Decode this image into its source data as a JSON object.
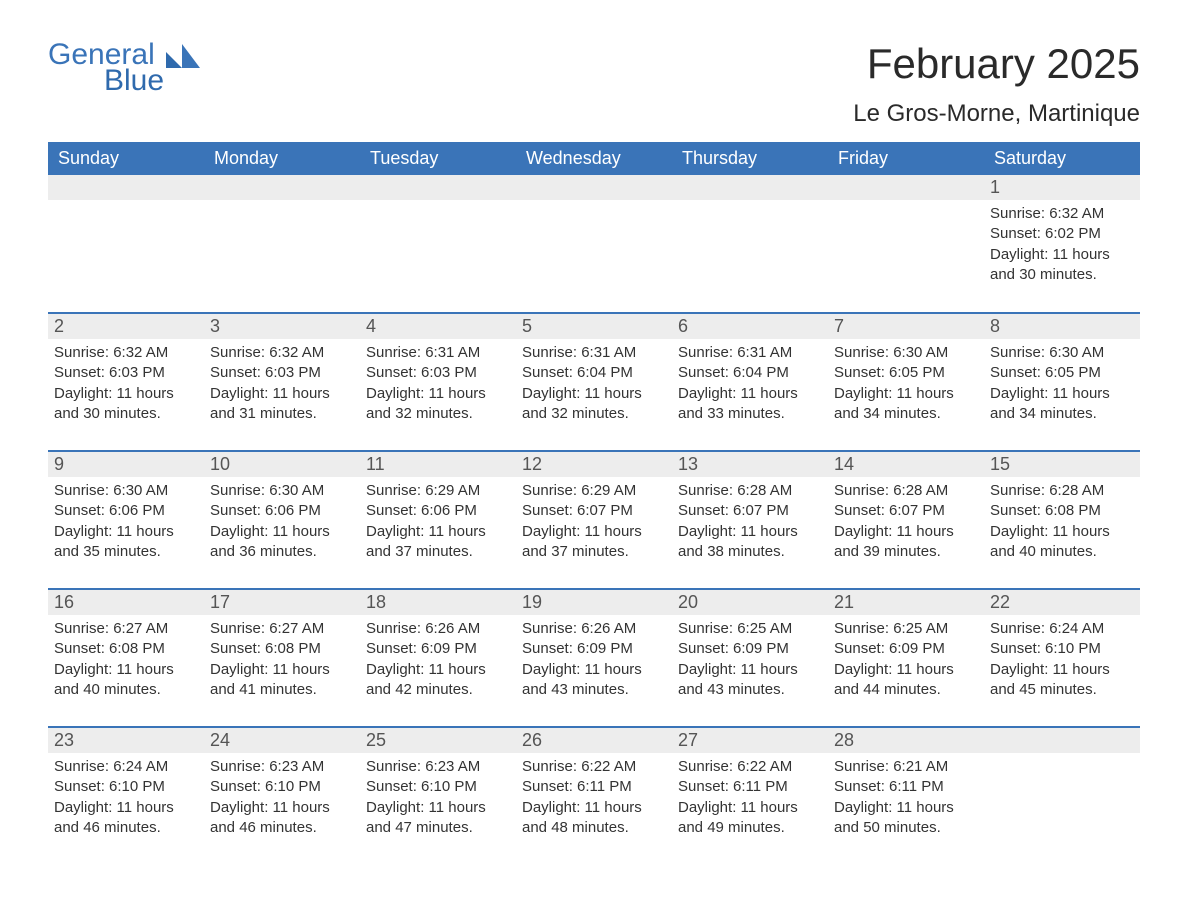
{
  "brand": {
    "general": "General",
    "blue": "Blue"
  },
  "title": "February 2025",
  "location": "Le Gros-Morne, Martinique",
  "calendar": {
    "type": "table",
    "header_bg": "#3a74b8",
    "header_fg": "#ffffff",
    "row_divider_color": "#3a74b8",
    "daynum_bg": "#ededed",
    "text_color": "#333333",
    "background_color": "#ffffff",
    "title_fontsize": 42,
    "location_fontsize": 24,
    "header_fontsize": 18,
    "body_fontsize": 15,
    "columns": [
      "Sunday",
      "Monday",
      "Tuesday",
      "Wednesday",
      "Thursday",
      "Friday",
      "Saturday"
    ],
    "weeks": [
      [
        null,
        null,
        null,
        null,
        null,
        null,
        {
          "n": "1",
          "sunrise": "Sunrise: 6:32 AM",
          "sunset": "Sunset: 6:02 PM",
          "daylight": "Daylight: 11 hours and 30 minutes."
        }
      ],
      [
        {
          "n": "2",
          "sunrise": "Sunrise: 6:32 AM",
          "sunset": "Sunset: 6:03 PM",
          "daylight": "Daylight: 11 hours and 30 minutes."
        },
        {
          "n": "3",
          "sunrise": "Sunrise: 6:32 AM",
          "sunset": "Sunset: 6:03 PM",
          "daylight": "Daylight: 11 hours and 31 minutes."
        },
        {
          "n": "4",
          "sunrise": "Sunrise: 6:31 AM",
          "sunset": "Sunset: 6:03 PM",
          "daylight": "Daylight: 11 hours and 32 minutes."
        },
        {
          "n": "5",
          "sunrise": "Sunrise: 6:31 AM",
          "sunset": "Sunset: 6:04 PM",
          "daylight": "Daylight: 11 hours and 32 minutes."
        },
        {
          "n": "6",
          "sunrise": "Sunrise: 6:31 AM",
          "sunset": "Sunset: 6:04 PM",
          "daylight": "Daylight: 11 hours and 33 minutes."
        },
        {
          "n": "7",
          "sunrise": "Sunrise: 6:30 AM",
          "sunset": "Sunset: 6:05 PM",
          "daylight": "Daylight: 11 hours and 34 minutes."
        },
        {
          "n": "8",
          "sunrise": "Sunrise: 6:30 AM",
          "sunset": "Sunset: 6:05 PM",
          "daylight": "Daylight: 11 hours and 34 minutes."
        }
      ],
      [
        {
          "n": "9",
          "sunrise": "Sunrise: 6:30 AM",
          "sunset": "Sunset: 6:06 PM",
          "daylight": "Daylight: 11 hours and 35 minutes."
        },
        {
          "n": "10",
          "sunrise": "Sunrise: 6:30 AM",
          "sunset": "Sunset: 6:06 PM",
          "daylight": "Daylight: 11 hours and 36 minutes."
        },
        {
          "n": "11",
          "sunrise": "Sunrise: 6:29 AM",
          "sunset": "Sunset: 6:06 PM",
          "daylight": "Daylight: 11 hours and 37 minutes."
        },
        {
          "n": "12",
          "sunrise": "Sunrise: 6:29 AM",
          "sunset": "Sunset: 6:07 PM",
          "daylight": "Daylight: 11 hours and 37 minutes."
        },
        {
          "n": "13",
          "sunrise": "Sunrise: 6:28 AM",
          "sunset": "Sunset: 6:07 PM",
          "daylight": "Daylight: 11 hours and 38 minutes."
        },
        {
          "n": "14",
          "sunrise": "Sunrise: 6:28 AM",
          "sunset": "Sunset: 6:07 PM",
          "daylight": "Daylight: 11 hours and 39 minutes."
        },
        {
          "n": "15",
          "sunrise": "Sunrise: 6:28 AM",
          "sunset": "Sunset: 6:08 PM",
          "daylight": "Daylight: 11 hours and 40 minutes."
        }
      ],
      [
        {
          "n": "16",
          "sunrise": "Sunrise: 6:27 AM",
          "sunset": "Sunset: 6:08 PM",
          "daylight": "Daylight: 11 hours and 40 minutes."
        },
        {
          "n": "17",
          "sunrise": "Sunrise: 6:27 AM",
          "sunset": "Sunset: 6:08 PM",
          "daylight": "Daylight: 11 hours and 41 minutes."
        },
        {
          "n": "18",
          "sunrise": "Sunrise: 6:26 AM",
          "sunset": "Sunset: 6:09 PM",
          "daylight": "Daylight: 11 hours and 42 minutes."
        },
        {
          "n": "19",
          "sunrise": "Sunrise: 6:26 AM",
          "sunset": "Sunset: 6:09 PM",
          "daylight": "Daylight: 11 hours and 43 minutes."
        },
        {
          "n": "20",
          "sunrise": "Sunrise: 6:25 AM",
          "sunset": "Sunset: 6:09 PM",
          "daylight": "Daylight: 11 hours and 43 minutes."
        },
        {
          "n": "21",
          "sunrise": "Sunrise: 6:25 AM",
          "sunset": "Sunset: 6:09 PM",
          "daylight": "Daylight: 11 hours and 44 minutes."
        },
        {
          "n": "22",
          "sunrise": "Sunrise: 6:24 AM",
          "sunset": "Sunset: 6:10 PM",
          "daylight": "Daylight: 11 hours and 45 minutes."
        }
      ],
      [
        {
          "n": "23",
          "sunrise": "Sunrise: 6:24 AM",
          "sunset": "Sunset: 6:10 PM",
          "daylight": "Daylight: 11 hours and 46 minutes."
        },
        {
          "n": "24",
          "sunrise": "Sunrise: 6:23 AM",
          "sunset": "Sunset: 6:10 PM",
          "daylight": "Daylight: 11 hours and 46 minutes."
        },
        {
          "n": "25",
          "sunrise": "Sunrise: 6:23 AM",
          "sunset": "Sunset: 6:10 PM",
          "daylight": "Daylight: 11 hours and 47 minutes."
        },
        {
          "n": "26",
          "sunrise": "Sunrise: 6:22 AM",
          "sunset": "Sunset: 6:11 PM",
          "daylight": "Daylight: 11 hours and 48 minutes."
        },
        {
          "n": "27",
          "sunrise": "Sunrise: 6:22 AM",
          "sunset": "Sunset: 6:11 PM",
          "daylight": "Daylight: 11 hours and 49 minutes."
        },
        {
          "n": "28",
          "sunrise": "Sunrise: 6:21 AM",
          "sunset": "Sunset: 6:11 PM",
          "daylight": "Daylight: 11 hours and 50 minutes."
        },
        null
      ]
    ]
  }
}
